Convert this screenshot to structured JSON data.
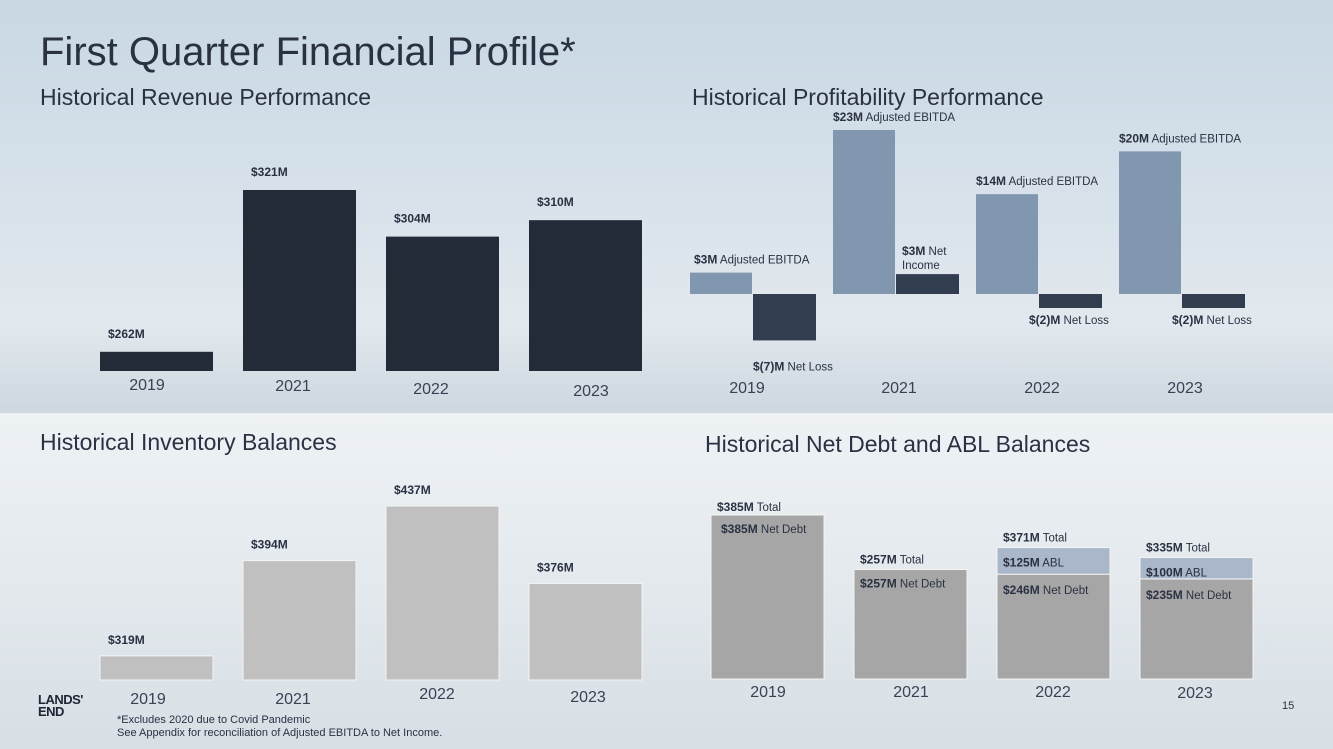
{
  "title": "First Quarter Financial Profile*",
  "sections": {
    "revenue": "Historical Revenue Performance",
    "profitability": "Historical Profitability Performance",
    "inventory": "Historical Inventory Balances",
    "debt": "Historical Net Debt and ABL Balances"
  },
  "colors": {
    "revenue_bar": "#232a38",
    "ebitda_bar": "#8196af",
    "net_bar": "#323d50",
    "inventory_bar": "#c0c0c0",
    "net_debt_bar": "#a6a6a6",
    "abl_bar": "#aab6c9"
  },
  "chart_data": [
    {
      "id": "revenue",
      "type": "bar",
      "title": "Historical Revenue Performance",
      "categories": [
        "2019",
        "2021",
        "2022",
        "2023"
      ],
      "values": [
        262,
        321,
        304,
        310
      ],
      "labels": [
        "$262M",
        "$321M",
        "$304M",
        "$310M"
      ],
      "unit": "$M",
      "ylim": [
        255,
        325
      ]
    },
    {
      "id": "profitability",
      "type": "bar",
      "title": "Historical Profitability Performance",
      "categories": [
        "2019",
        "2021",
        "2022",
        "2023"
      ],
      "series": [
        {
          "name": "Adjusted EBITDA",
          "values": [
            3,
            23,
            14,
            20
          ]
        },
        {
          "name": "Net Income / Net Loss",
          "values": [
            -7,
            3,
            -2,
            -2
          ]
        }
      ],
      "unit": "$M",
      "ebitda_labels": [
        {
          "value": "$3M",
          "text": "Adjusted EBITDA"
        },
        {
          "value": "$23M",
          "text": "Adjusted EBITDA"
        },
        {
          "value": "$14M",
          "text": "Adjusted EBITDA"
        },
        {
          "value": "$20M",
          "text": "Adjusted EBITDA"
        }
      ],
      "net_labels": [
        {
          "value": "$(7)M",
          "text": "Net Loss"
        },
        {
          "value": "$3M",
          "text": "Net",
          "text2": "Income"
        },
        {
          "value": "$(2)M",
          "text": "Net Loss"
        },
        {
          "value": "$(2)M",
          "text": "Net Loss"
        }
      ]
    },
    {
      "id": "inventory",
      "type": "bar",
      "title": "Historical Inventory Balances",
      "categories": [
        "2019",
        "2021",
        "2022",
        "2023"
      ],
      "values": [
        319,
        394,
        437,
        376
      ],
      "labels": [
        "$319M",
        "$394M",
        "$437M",
        "$376M"
      ],
      "unit": "$M",
      "ylim": [
        300,
        440
      ]
    },
    {
      "id": "debt",
      "type": "bar",
      "stacked": true,
      "title": "Historical Net Debt and ABL Balances",
      "categories": [
        "2019",
        "2021",
        "2022",
        "2023"
      ],
      "series": [
        {
          "name": "Net Debt",
          "values": [
            385,
            257,
            246,
            235
          ]
        },
        {
          "name": "ABL",
          "values": [
            0,
            0,
            125,
            100
          ]
        }
      ],
      "totals": [
        385,
        257,
        371,
        335
      ],
      "unit": "$M",
      "total_labels": [
        {
          "value": "$385M",
          "text": "Total"
        },
        {
          "value": "$257M",
          "text": "Total"
        },
        {
          "value": "$371M",
          "text": "Total"
        },
        {
          "value": "$335M",
          "text": "Total"
        }
      ],
      "net_debt_labels": [
        {
          "value": "$385M",
          "text": "Net Debt"
        },
        {
          "value": "$257M",
          "text": "Net Debt"
        },
        {
          "value": "$246M",
          "text": "Net Debt"
        },
        {
          "value": "$235M",
          "text": "Net Debt"
        }
      ],
      "abl_labels": [
        null,
        null,
        {
          "value": "$125M",
          "text": "ABL"
        },
        {
          "value": "$100M",
          "text": "ABL"
        }
      ]
    }
  ],
  "logo": {
    "line1": "LANDS'",
    "line2": "END"
  },
  "footnotes": {
    "line1": "*Excludes 2020 due to Covid Pandemic",
    "line2": "See Appendix for reconciliation  of Adjusted EBITDA to Net Income."
  },
  "page_number": "15"
}
